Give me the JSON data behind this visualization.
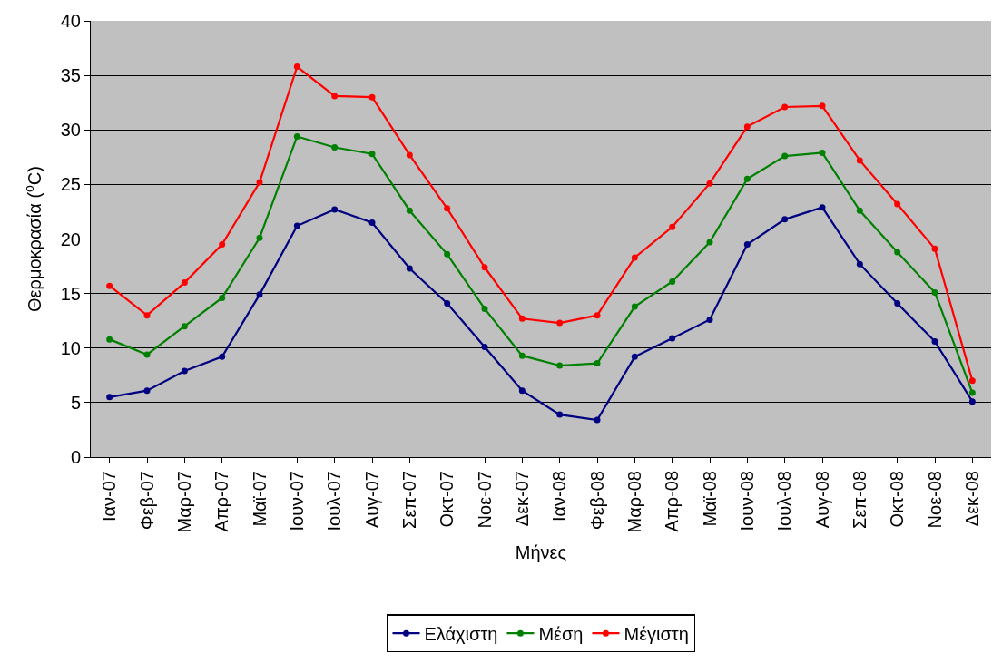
{
  "chart_data": {
    "type": "line",
    "xlabel": "Μήνες",
    "ylabel": "Θερμοκρασία ($^{o}$C)",
    "categories": [
      "Ιαν-07",
      "Φεβ-07",
      "Μαρ-07",
      "Απρ-07",
      "Μαϊ-07",
      "Ιουν-07",
      "Ιουλ-07",
      "Αυγ-07",
      "Σεπ-07",
      "Οκτ-07",
      "Νοε-07",
      "Δεκ-07",
      "Ιαν-08",
      "Φεβ-08",
      "Μαρ-08",
      "Απρ-08",
      "Μαϊ-08",
      "Ιουν-08",
      "Ιουλ-08",
      "Αυγ-08",
      "Σεπ-08",
      "Οκτ-08",
      "Νοε-08",
      "Δεκ-08"
    ],
    "series": [
      {
        "name": "Ελάχιστη",
        "color": "#000080",
        "values": [
          5.5,
          6.1,
          7.9,
          9.2,
          14.9,
          21.2,
          22.7,
          21.5,
          17.3,
          14.1,
          10.1,
          6.1,
          3.9,
          3.4,
          9.2,
          10.9,
          12.6,
          19.5,
          21.8,
          22.9,
          17.7,
          14.1,
          10.6,
          5.1
        ]
      },
      {
        "name": "Μέση",
        "color": "#008000",
        "values": [
          10.8,
          9.4,
          12.0,
          14.6,
          20.1,
          29.4,
          28.4,
          27.8,
          22.6,
          18.6,
          13.6,
          9.3,
          8.4,
          8.6,
          13.8,
          16.1,
          19.7,
          25.5,
          27.6,
          27.9,
          22.6,
          18.8,
          15.1,
          5.9
        ]
      },
      {
        "name": "Μέγιστη",
        "color": "#ff0000",
        "values": [
          15.7,
          13.0,
          16.0,
          19.5,
          25.2,
          35.8,
          33.1,
          33.0,
          27.7,
          22.8,
          17.4,
          12.7,
          12.3,
          13.0,
          18.3,
          21.1,
          25.1,
          30.3,
          32.1,
          32.2,
          27.2,
          23.2,
          19.1,
          7.0
        ]
      }
    ],
    "ylim": [
      0,
      40
    ],
    "yticks": [
      0,
      5,
      10,
      15,
      20,
      25,
      30,
      35,
      40
    ],
    "grid": "y",
    "legend": "bottom",
    "marker": "circle",
    "line_style": "solid"
  }
}
